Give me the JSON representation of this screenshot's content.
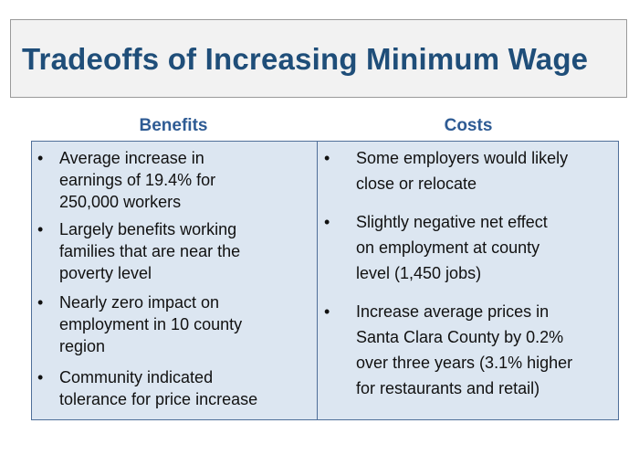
{
  "title": "Tradeoffs of Increasing Minimum Wage",
  "benefits": {
    "heading": "Benefits",
    "items": [
      [
        "Average increase in",
        "earnings of 19.4% for",
        "250,000 workers"
      ],
      [
        "Largely benefits working",
        "families that are near the",
        "poverty level"
      ],
      [
        "Nearly zero impact on",
        "employment in 10 county",
        "region"
      ],
      [
        "Community indicated",
        "tolerance for price increase"
      ]
    ]
  },
  "costs": {
    "heading": "Costs",
    "items": [
      [
        "Some employers would likely",
        "close or relocate"
      ],
      [
        "Slightly negative net effect",
        "on employment at county",
        "level (1,450 jobs)"
      ],
      [
        "Increase average prices in",
        "Santa Clara County by 0.2%",
        "over three years (3.1% higher",
        "for restaurants and retail)"
      ]
    ]
  },
  "bullet_glyph": "•",
  "colors": {
    "title": "#1f4e79",
    "heading": "#2e5b94",
    "table_fill": "#dce6f1",
    "table_border": "#4f6f99",
    "title_box_fill": "#f2f2f2"
  }
}
